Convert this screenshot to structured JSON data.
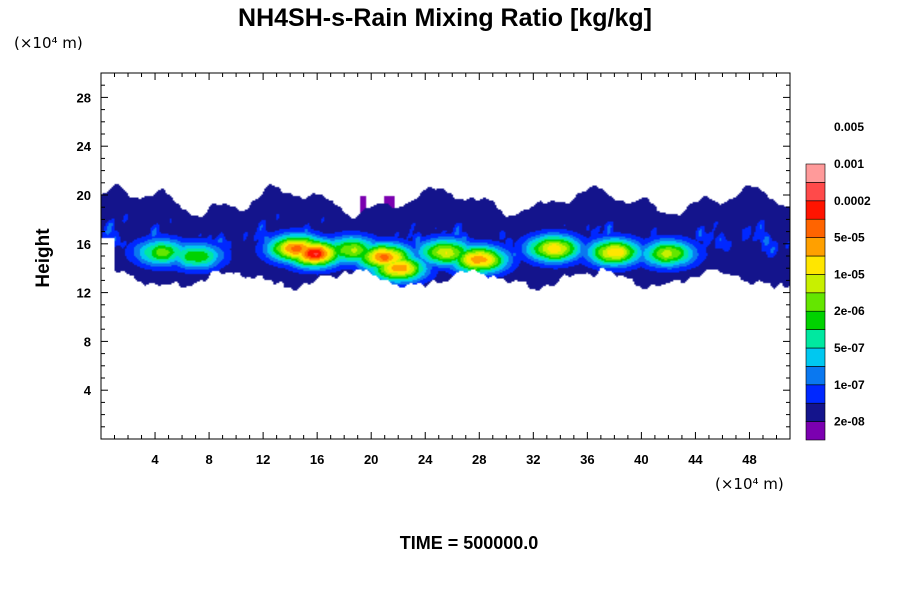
{
  "chart_data": {
    "type": "heatmap",
    "title": "NH4SH-s-Rain Mixing Ratio [kg/kg]",
    "ylabel": "Height",
    "xlabel": "",
    "x_unit": "(×10⁴ m)",
    "y_unit": "(×10⁴ m)",
    "footer": "TIME = 500000.0",
    "xlim": [
      0,
      51
    ],
    "ylim": [
      0,
      30
    ],
    "x_ticks": [
      4,
      8,
      12,
      16,
      20,
      24,
      28,
      32,
      36,
      40,
      44,
      48
    ],
    "y_ticks": [
      4,
      8,
      12,
      16,
      20,
      24,
      28
    ],
    "legend": {
      "placement": "right",
      "labels": [
        "2e-08",
        "1e-07",
        "5e-07",
        "2e-06",
        "1e-05",
        "5e-05",
        "0.0002",
        "0.001",
        "0.005"
      ],
      "colors": [
        "#7b00b0",
        "#14148c",
        "#0028ff",
        "#0a78f0",
        "#00c8f0",
        "#00e8a0",
        "#00d200",
        "#64e600",
        "#c8f000",
        "#ffe600",
        "#ffa000",
        "#ff6400",
        "#ff1400",
        "#ff4a4a",
        "#ff9a9a"
      ]
    },
    "layer": {
      "description_levels": "log10 mixing ratio contour layer centred near height 15.5, spanning x 0 to 51",
      "base_log": -7.2,
      "cores": [
        {
          "x": 15.8,
          "y": 15.2,
          "log": -2.9
        },
        {
          "x": 14.5,
          "y": 15.6,
          "log": -3.3
        },
        {
          "x": 21.0,
          "y": 14.9,
          "log": -3.4
        },
        {
          "x": 22.0,
          "y": 14.0,
          "log": -3.7
        },
        {
          "x": 28.0,
          "y": 14.7,
          "log": -3.6
        },
        {
          "x": 25.5,
          "y": 15.3,
          "log": -4.4
        },
        {
          "x": 33.5,
          "y": 15.6,
          "log": -4.1
        },
        {
          "x": 38.0,
          "y": 15.3,
          "log": -4.1
        },
        {
          "x": 42.0,
          "y": 15.2,
          "log": -4.7
        },
        {
          "x": 18.5,
          "y": 15.5,
          "log": -4.7
        },
        {
          "x": 4.5,
          "y": 15.3,
          "log": -5.1
        },
        {
          "x": 7.0,
          "y": 15.0,
          "log": -5.2
        }
      ]
    }
  }
}
